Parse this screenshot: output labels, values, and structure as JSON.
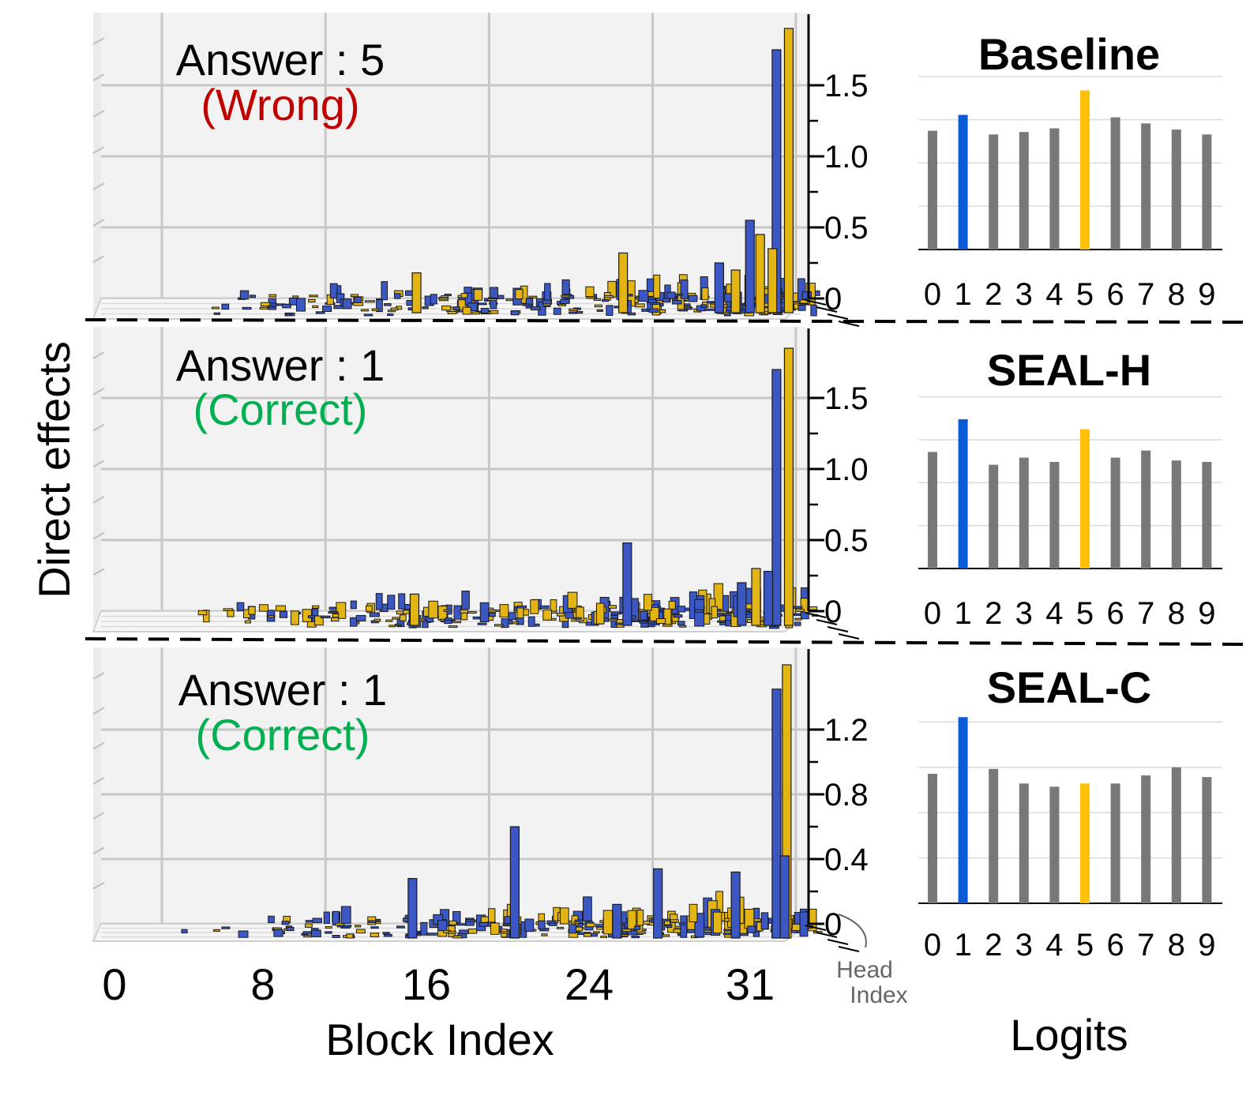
{
  "labels": {
    "y_axis": "Direct effects",
    "x_axis": "Block Index",
    "head_axis": [
      "Head",
      "Index"
    ],
    "logits_axis": "Logits"
  },
  "block_ticks": [
    "0",
    "8",
    "16",
    "24",
    "31"
  ],
  "colors": {
    "blue": "#3a57c4",
    "gold": "#e2b515",
    "logit_gray": "#787878",
    "logit_blue": "#0b5bd6",
    "logit_gold": "#ffc107",
    "wrong": "#c00000",
    "correct": "#00b050"
  },
  "panels": [
    {
      "method": "Baseline",
      "answer_text": "Answer : 5",
      "verdict_text": "(Wrong)",
      "verdict": "wrong",
      "z_ticks": [
        "1.5",
        "1.0",
        "0.5",
        "0"
      ],
      "z_tick_values": [
        1.5,
        1.0,
        0.5,
        0
      ],
      "logit_labels": [
        "0",
        "1",
        "2",
        "3",
        "4",
        "5",
        "6",
        "7",
        "8",
        "9"
      ],
      "logit_values": [
        0.97,
        1.1,
        0.94,
        0.96,
        0.99,
        1.3,
        1.08,
        1.03,
        0.98,
        0.94
      ],
      "logit_highlight": {
        "1": "blue",
        "5": "gold"
      },
      "peaks": [
        {
          "block": 31,
          "series": "blue",
          "value": 1.75
        },
        {
          "block": 31.6,
          "series": "gold",
          "value": 1.9
        },
        {
          "block": 29.7,
          "series": "blue",
          "value": 0.55
        },
        {
          "block": 30.2,
          "series": "gold",
          "value": 0.45
        },
        {
          "block": 30.8,
          "series": "gold",
          "value": 0.35
        },
        {
          "block": 28.2,
          "series": "blue",
          "value": 0.25
        },
        {
          "block": 29.0,
          "series": "gold",
          "value": 0.2
        },
        {
          "block": 23.5,
          "series": "gold",
          "value": 0.32
        },
        {
          "block": 13.4,
          "series": "gold",
          "value": 0.18
        }
      ]
    },
    {
      "method": "SEAL-H",
      "answer_text": "Answer : 1",
      "verdict_text": "(Correct)",
      "verdict": "correct",
      "z_ticks": [
        "1.5",
        "1.0",
        "0.5",
        "0"
      ],
      "z_tick_values": [
        1.5,
        1.0,
        0.5,
        0
      ],
      "logit_labels": [
        "0",
        "1",
        "2",
        "3",
        "4",
        "5",
        "6",
        "7",
        "8",
        "9"
      ],
      "logit_values": [
        0.82,
        1.05,
        0.73,
        0.78,
        0.75,
        0.98,
        0.78,
        0.83,
        0.76,
        0.75
      ],
      "logit_highlight": {
        "1": "blue",
        "5": "gold"
      },
      "peaks": [
        {
          "block": 31,
          "series": "blue",
          "value": 1.7
        },
        {
          "block": 31.6,
          "series": "gold",
          "value": 1.85
        },
        {
          "block": 23.7,
          "series": "blue",
          "value": 0.48
        },
        {
          "block": 30.0,
          "series": "gold",
          "value": 0.3
        },
        {
          "block": 30.6,
          "series": "blue",
          "value": 0.28
        },
        {
          "block": 29.3,
          "series": "blue",
          "value": 0.2
        },
        {
          "block": 13.3,
          "series": "gold",
          "value": 0.12
        }
      ]
    },
    {
      "method": "SEAL-C",
      "answer_text": "Answer : 1",
      "verdict_text": "(Correct)",
      "verdict": "correct",
      "z_ticks": [
        "1.2",
        "0.8",
        "0.4",
        "0"
      ],
      "z_tick_values": [
        1.2,
        0.8,
        0.4,
        0
      ],
      "logit_labels": [
        "0",
        "1",
        "2",
        "3",
        "4",
        "5",
        "6",
        "7",
        "8",
        "9"
      ],
      "logit_values": [
        0.8,
        1.15,
        0.83,
        0.74,
        0.72,
        0.74,
        0.74,
        0.79,
        0.84,
        0.78
      ],
      "logit_highlight": {
        "1": "blue",
        "5": "gold"
      },
      "peaks": [
        {
          "block": 31,
          "series": "blue",
          "value": 1.45
        },
        {
          "block": 31.5,
          "series": "gold",
          "value": 1.6
        },
        {
          "block": 18.2,
          "series": "blue",
          "value": 0.6
        },
        {
          "block": 13.2,
          "series": "blue",
          "value": 0.28
        },
        {
          "block": 25.2,
          "series": "blue",
          "value": 0.34
        },
        {
          "block": 29.0,
          "series": "blue",
          "value": 0.32
        },
        {
          "block": 31.4,
          "series": "blue",
          "value": 0.42
        },
        {
          "block": 23.2,
          "series": "blue",
          "value": 0.12
        }
      ]
    }
  ],
  "chart_data": [
    {
      "type": "bar",
      "title": "Baseline",
      "xlabel": "",
      "ylabel": "",
      "categories": [
        "0",
        "1",
        "2",
        "3",
        "4",
        "5",
        "6",
        "7",
        "8",
        "9"
      ],
      "values": [
        0.97,
        1.1,
        0.94,
        0.96,
        0.99,
        1.3,
        1.08,
        1.03,
        0.98,
        0.94
      ]
    },
    {
      "type": "bar",
      "title": "SEAL-H",
      "xlabel": "",
      "ylabel": "",
      "categories": [
        "0",
        "1",
        "2",
        "3",
        "4",
        "5",
        "6",
        "7",
        "8",
        "9"
      ],
      "values": [
        0.82,
        1.05,
        0.73,
        0.78,
        0.75,
        0.98,
        0.78,
        0.83,
        0.76,
        0.75
      ]
    },
    {
      "type": "bar",
      "title": "SEAL-C",
      "xlabel": "",
      "ylabel": "",
      "categories": [
        "0",
        "1",
        "2",
        "3",
        "4",
        "5",
        "6",
        "7",
        "8",
        "9"
      ],
      "values": [
        0.8,
        1.15,
        0.83,
        0.74,
        0.72,
        0.74,
        0.74,
        0.79,
        0.84,
        0.78
      ]
    },
    {
      "type": "bar",
      "title": "",
      "xlabel": "Block Index",
      "ylabel": "Direct effects",
      "categories": [
        "0",
        "8",
        "16",
        "24",
        "31"
      ],
      "series": [
        {
          "name": "",
          "values": [
            0.05,
            0.1,
            0.18,
            0.32,
            1.9
          ]
        }
      ]
    }
  ]
}
